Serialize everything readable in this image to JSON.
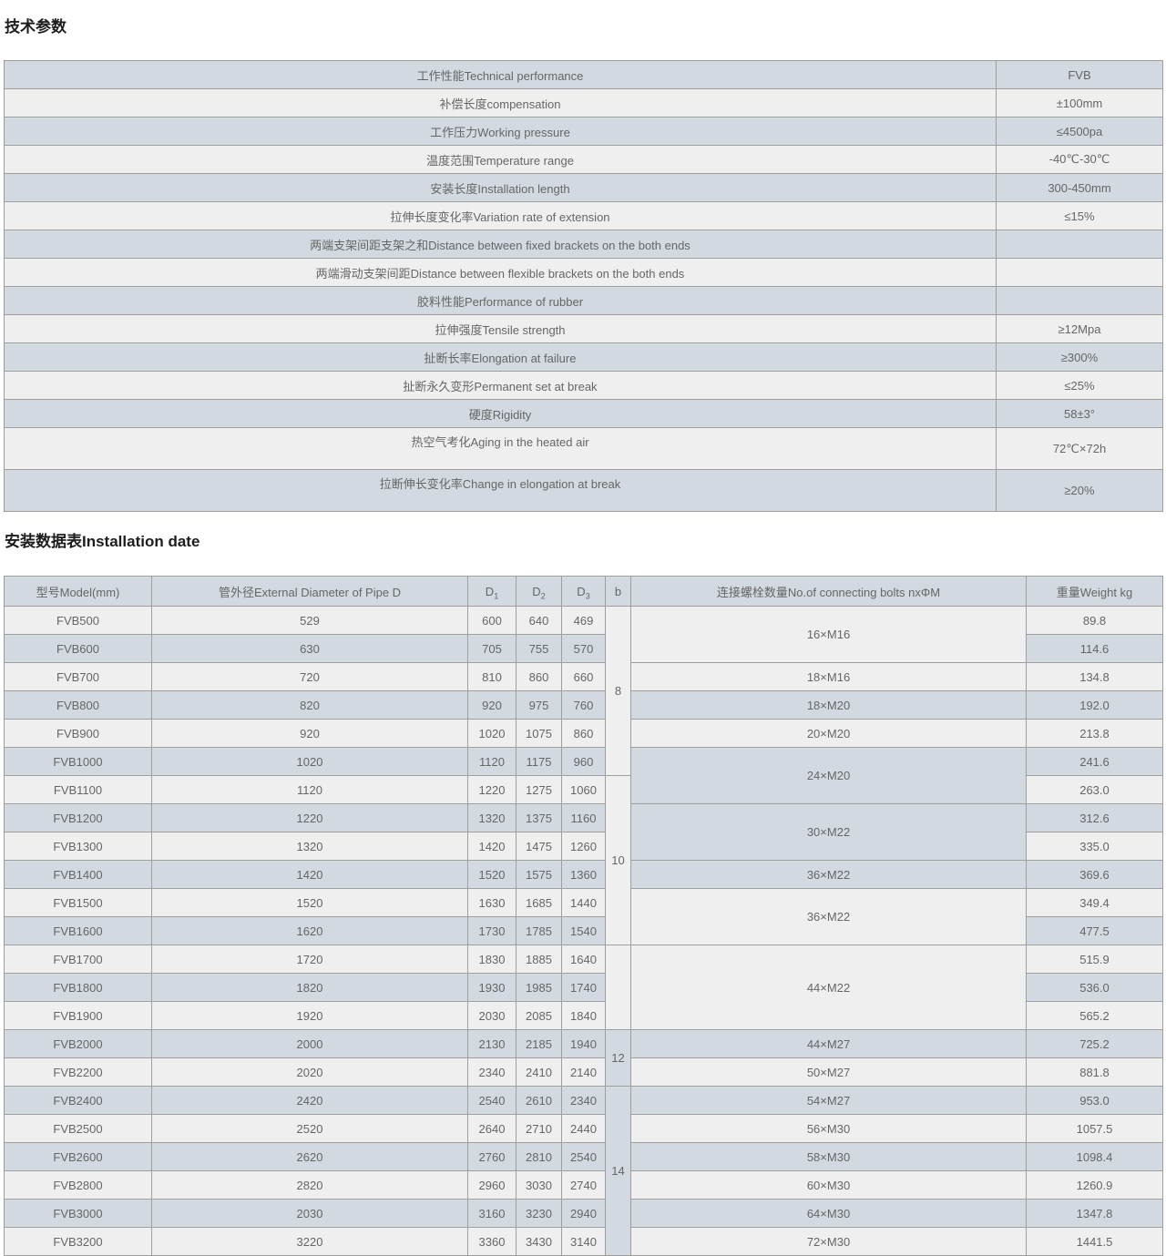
{
  "colors": {
    "row_dark": "#d2d9e0",
    "row_light": "#efefef",
    "border": "#9e9e9e",
    "text": "#666666",
    "heading_text": "#1d1d1d"
  },
  "section1": {
    "title": "技术参数",
    "rows": [
      {
        "label": "工作性能Technical performance",
        "value": "FVB"
      },
      {
        "label": "补偿长度compensation",
        "value": "±100mm"
      },
      {
        "label": "工作压力Working pressure",
        "value": "≤4500pa"
      },
      {
        "label": "温度范围Temperature range",
        "value": "-40℃-30℃"
      },
      {
        "label": "安装长度Installation length",
        "value": "300-450mm"
      },
      {
        "label": "拉伸长度变化率Variation rate of extension",
        "value": "≤15%"
      },
      {
        "label": "两端支架间距支架之和Distance between fixed brackets on the both ends",
        "value": ""
      },
      {
        "label": "两端滑动支架间距Distance between flexible brackets on the both ends",
        "value": ""
      },
      {
        "label": "胶料性能Performance of rubber",
        "value": ""
      },
      {
        "label": "拉伸强度Tensile strength",
        "value": "≥12Mpa"
      },
      {
        "label": "扯断长率Elongation at failure",
        "value": "≥300%"
      },
      {
        "label": "扯断永久变形Permanent set at break",
        "value": "≤25%"
      },
      {
        "label": "硬度Rigidity",
        "value": "58±3°"
      },
      {
        "label": "热空气考化Aging in the heated air",
        "value": "72℃×72h",
        "tall": true
      },
      {
        "label": "拉断伸长变化率Change in elongation at break",
        "value": "≥20%",
        "tall": true
      }
    ]
  },
  "section2": {
    "title": "安装数据表Installation date",
    "header": {
      "model": "型号Model(mm)",
      "diameter": "管外径External Diameter of Pipe D",
      "d_cols": [
        {
          "base": "D",
          "sub": "1"
        },
        {
          "base": "D",
          "sub": "2"
        },
        {
          "base": "D",
          "sub": "3"
        }
      ],
      "b": "b",
      "bolts": "连接螺栓数量No.of connecting bolts nxΦM",
      "weight": "重量Weight kg"
    },
    "rows": [
      {
        "model": "FVB500",
        "diameter": "529",
        "d1": "600",
        "d2": "640",
        "d3": "469",
        "weight": "89.8"
      },
      {
        "model": "FVB600",
        "diameter": "630",
        "d1": "705",
        "d2": "755",
        "d3": "570",
        "weight": "114.6"
      },
      {
        "model": "FVB700",
        "diameter": "720",
        "d1": "810",
        "d2": "860",
        "d3": "660",
        "weight": "134.8"
      },
      {
        "model": "FVB800",
        "diameter": "820",
        "d1": "920",
        "d2": "975",
        "d3": "760",
        "weight": "192.0"
      },
      {
        "model": "FVB900",
        "diameter": "920",
        "d1": "1020",
        "d2": "1075",
        "d3": "860",
        "weight": "213.8"
      },
      {
        "model": "FVB1000",
        "diameter": "1020",
        "d1": "1120",
        "d2": "1175",
        "d3": "960",
        "weight": "241.6"
      },
      {
        "model": "FVB1100",
        "diameter": "1120",
        "d1": "1220",
        "d2": "1275",
        "d3": "1060",
        "weight": "263.0"
      },
      {
        "model": "FVB1200",
        "diameter": "1220",
        "d1": "1320",
        "d2": "1375",
        "d3": "1160",
        "weight": "312.6"
      },
      {
        "model": "FVB1300",
        "diameter": "1320",
        "d1": "1420",
        "d2": "1475",
        "d3": "1260",
        "weight": "335.0"
      },
      {
        "model": "FVB1400",
        "diameter": "1420",
        "d1": "1520",
        "d2": "1575",
        "d3": "1360",
        "weight": "369.6"
      },
      {
        "model": "FVB1500",
        "diameter": "1520",
        "d1": "1630",
        "d2": "1685",
        "d3": "1440",
        "weight": "349.4"
      },
      {
        "model": "FVB1600",
        "diameter": "1620",
        "d1": "1730",
        "d2": "1785",
        "d3": "1540",
        "weight": "477.5"
      },
      {
        "model": "FVB1700",
        "diameter": "1720",
        "d1": "1830",
        "d2": "1885",
        "d3": "1640",
        "weight": "515.9"
      },
      {
        "model": "FVB1800",
        "diameter": "1820",
        "d1": "1930",
        "d2": "1985",
        "d3": "1740",
        "weight": "536.0"
      },
      {
        "model": "FVB1900",
        "diameter": "1920",
        "d1": "2030",
        "d2": "2085",
        "d3": "1840",
        "weight": "565.2"
      },
      {
        "model": "FVB2000",
        "diameter": "2000",
        "d1": "2130",
        "d2": "2185",
        "d3": "1940",
        "weight": "725.2"
      },
      {
        "model": "FVB2200",
        "diameter": "2020",
        "d1": "2340",
        "d2": "2410",
        "d3": "2140",
        "weight": "881.8"
      },
      {
        "model": "FVB2400",
        "diameter": "2420",
        "d1": "2540",
        "d2": "2610",
        "d3": "2340",
        "weight": "953.0"
      },
      {
        "model": "FVB2500",
        "diameter": "2520",
        "d1": "2640",
        "d2": "2710",
        "d3": "2440",
        "weight": "1057.5"
      },
      {
        "model": "FVB2600",
        "diameter": "2620",
        "d1": "2760",
        "d2": "2810",
        "d3": "2540",
        "weight": "1098.4"
      },
      {
        "model": "FVB2800",
        "diameter": "2820",
        "d1": "2960",
        "d2": "3030",
        "d3": "2740",
        "weight": "1260.9"
      },
      {
        "model": "FVB3000",
        "diameter": "2030",
        "d1": "3160",
        "d2": "3230",
        "d3": "2940",
        "weight": "1347.8"
      },
      {
        "model": "FVB3200",
        "diameter": "3220",
        "d1": "3360",
        "d2": "3430",
        "d3": "3140",
        "weight": "1441.5"
      }
    ],
    "b_groups": [
      {
        "label": "8",
        "span": 6
      },
      {
        "label": "10",
        "span": 6
      },
      {
        "label": "",
        "span": 3
      },
      {
        "label": "12",
        "span": 2
      },
      {
        "label": "14",
        "span": 6
      }
    ],
    "bolt_groups": [
      {
        "label": "16×M16",
        "span": 2
      },
      {
        "label": "18×M16",
        "span": 1
      },
      {
        "label": "18×M20",
        "span": 1
      },
      {
        "label": "20×M20",
        "span": 1
      },
      {
        "label": "24×M20",
        "span": 2
      },
      {
        "label": "30×M22",
        "span": 2
      },
      {
        "label": "36×M22",
        "span": 1
      },
      {
        "label": "36×M22",
        "span": 2
      },
      {
        "label": "44×M22",
        "span": 3
      },
      {
        "label": "44×M27",
        "span": 1
      },
      {
        "label": "50×M27",
        "span": 1
      },
      {
        "label": "54×M27",
        "span": 1
      },
      {
        "label": "56×M30",
        "span": 1
      },
      {
        "label": "58×M30",
        "span": 1
      },
      {
        "label": "60×M30",
        "span": 1
      },
      {
        "label": "64×M30",
        "span": 1
      },
      {
        "label": "72×M30",
        "span": 1
      }
    ]
  }
}
